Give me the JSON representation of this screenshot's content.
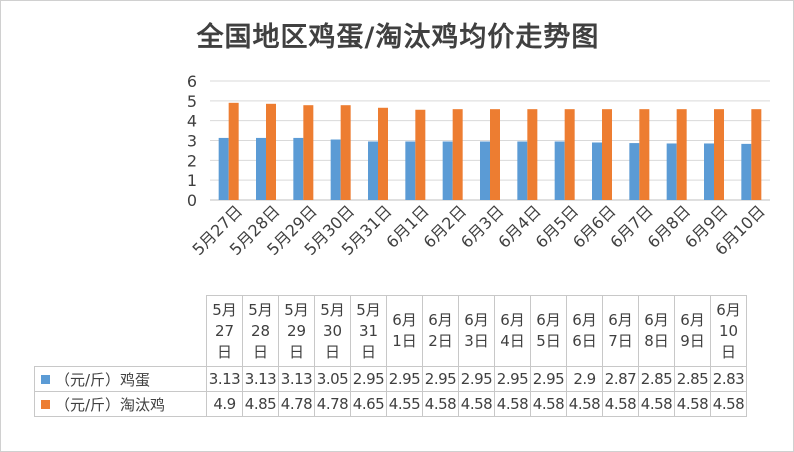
{
  "chart_data": {
    "type": "bar",
    "title": "全国地区鸡蛋/淘汰鸡均价走势图",
    "categories": [
      "5月27日",
      "5月28日",
      "5月29日",
      "5月30日",
      "5月31日",
      "6月1日",
      "6月2日",
      "6月3日",
      "6月4日",
      "6月5日",
      "6月6日",
      "6月7日",
      "6月8日",
      "6月9日",
      "6月10日"
    ],
    "table_headers": [
      [
        "5月",
        "27",
        "日"
      ],
      [
        "5月",
        "28",
        "日"
      ],
      [
        "5月",
        "29",
        "日"
      ],
      [
        "5月",
        "30",
        "日"
      ],
      [
        "5月",
        "31",
        "日"
      ],
      [
        "6月",
        "1日"
      ],
      [
        "6月",
        "2日"
      ],
      [
        "6月",
        "3日"
      ],
      [
        "6月",
        "4日"
      ],
      [
        "6月",
        "5日"
      ],
      [
        "6月",
        "6日"
      ],
      [
        "6月",
        "7日"
      ],
      [
        "6月",
        "8日"
      ],
      [
        "6月",
        "9日"
      ],
      [
        "6月",
        "10",
        "日"
      ]
    ],
    "series": [
      {
        "name": "（元/斤）鸡蛋",
        "color": "#5b9bd5",
        "values": [
          3.13,
          3.13,
          3.13,
          3.05,
          2.95,
          2.95,
          2.95,
          2.95,
          2.95,
          2.95,
          2.9,
          2.87,
          2.85,
          2.85,
          2.83
        ],
        "labels": [
          "3.13",
          "3.13",
          "3.13",
          "3.05",
          "2.95",
          "2.95",
          "2.95",
          "2.95",
          "2.95",
          "2.95",
          "2.9",
          "2.87",
          "2.85",
          "2.85",
          "2.83"
        ]
      },
      {
        "name": "（元/斤）淘汰鸡",
        "color": "#ed7d31",
        "values": [
          4.9,
          4.85,
          4.78,
          4.78,
          4.65,
          4.55,
          4.58,
          4.58,
          4.58,
          4.58,
          4.58,
          4.58,
          4.58,
          4.58,
          4.58
        ],
        "labels": [
          "4.9",
          "4.85",
          "4.78",
          "4.78",
          "4.65",
          "4.55",
          "4.58",
          "4.58",
          "4.58",
          "4.58",
          "4.58",
          "4.58",
          "4.58",
          "4.58",
          "4.58"
        ]
      }
    ],
    "yticks": [
      "0",
      "1",
      "2",
      "3",
      "4",
      "5",
      "6"
    ],
    "ylim": [
      0,
      6
    ],
    "grid": true,
    "legend": "data-table"
  }
}
